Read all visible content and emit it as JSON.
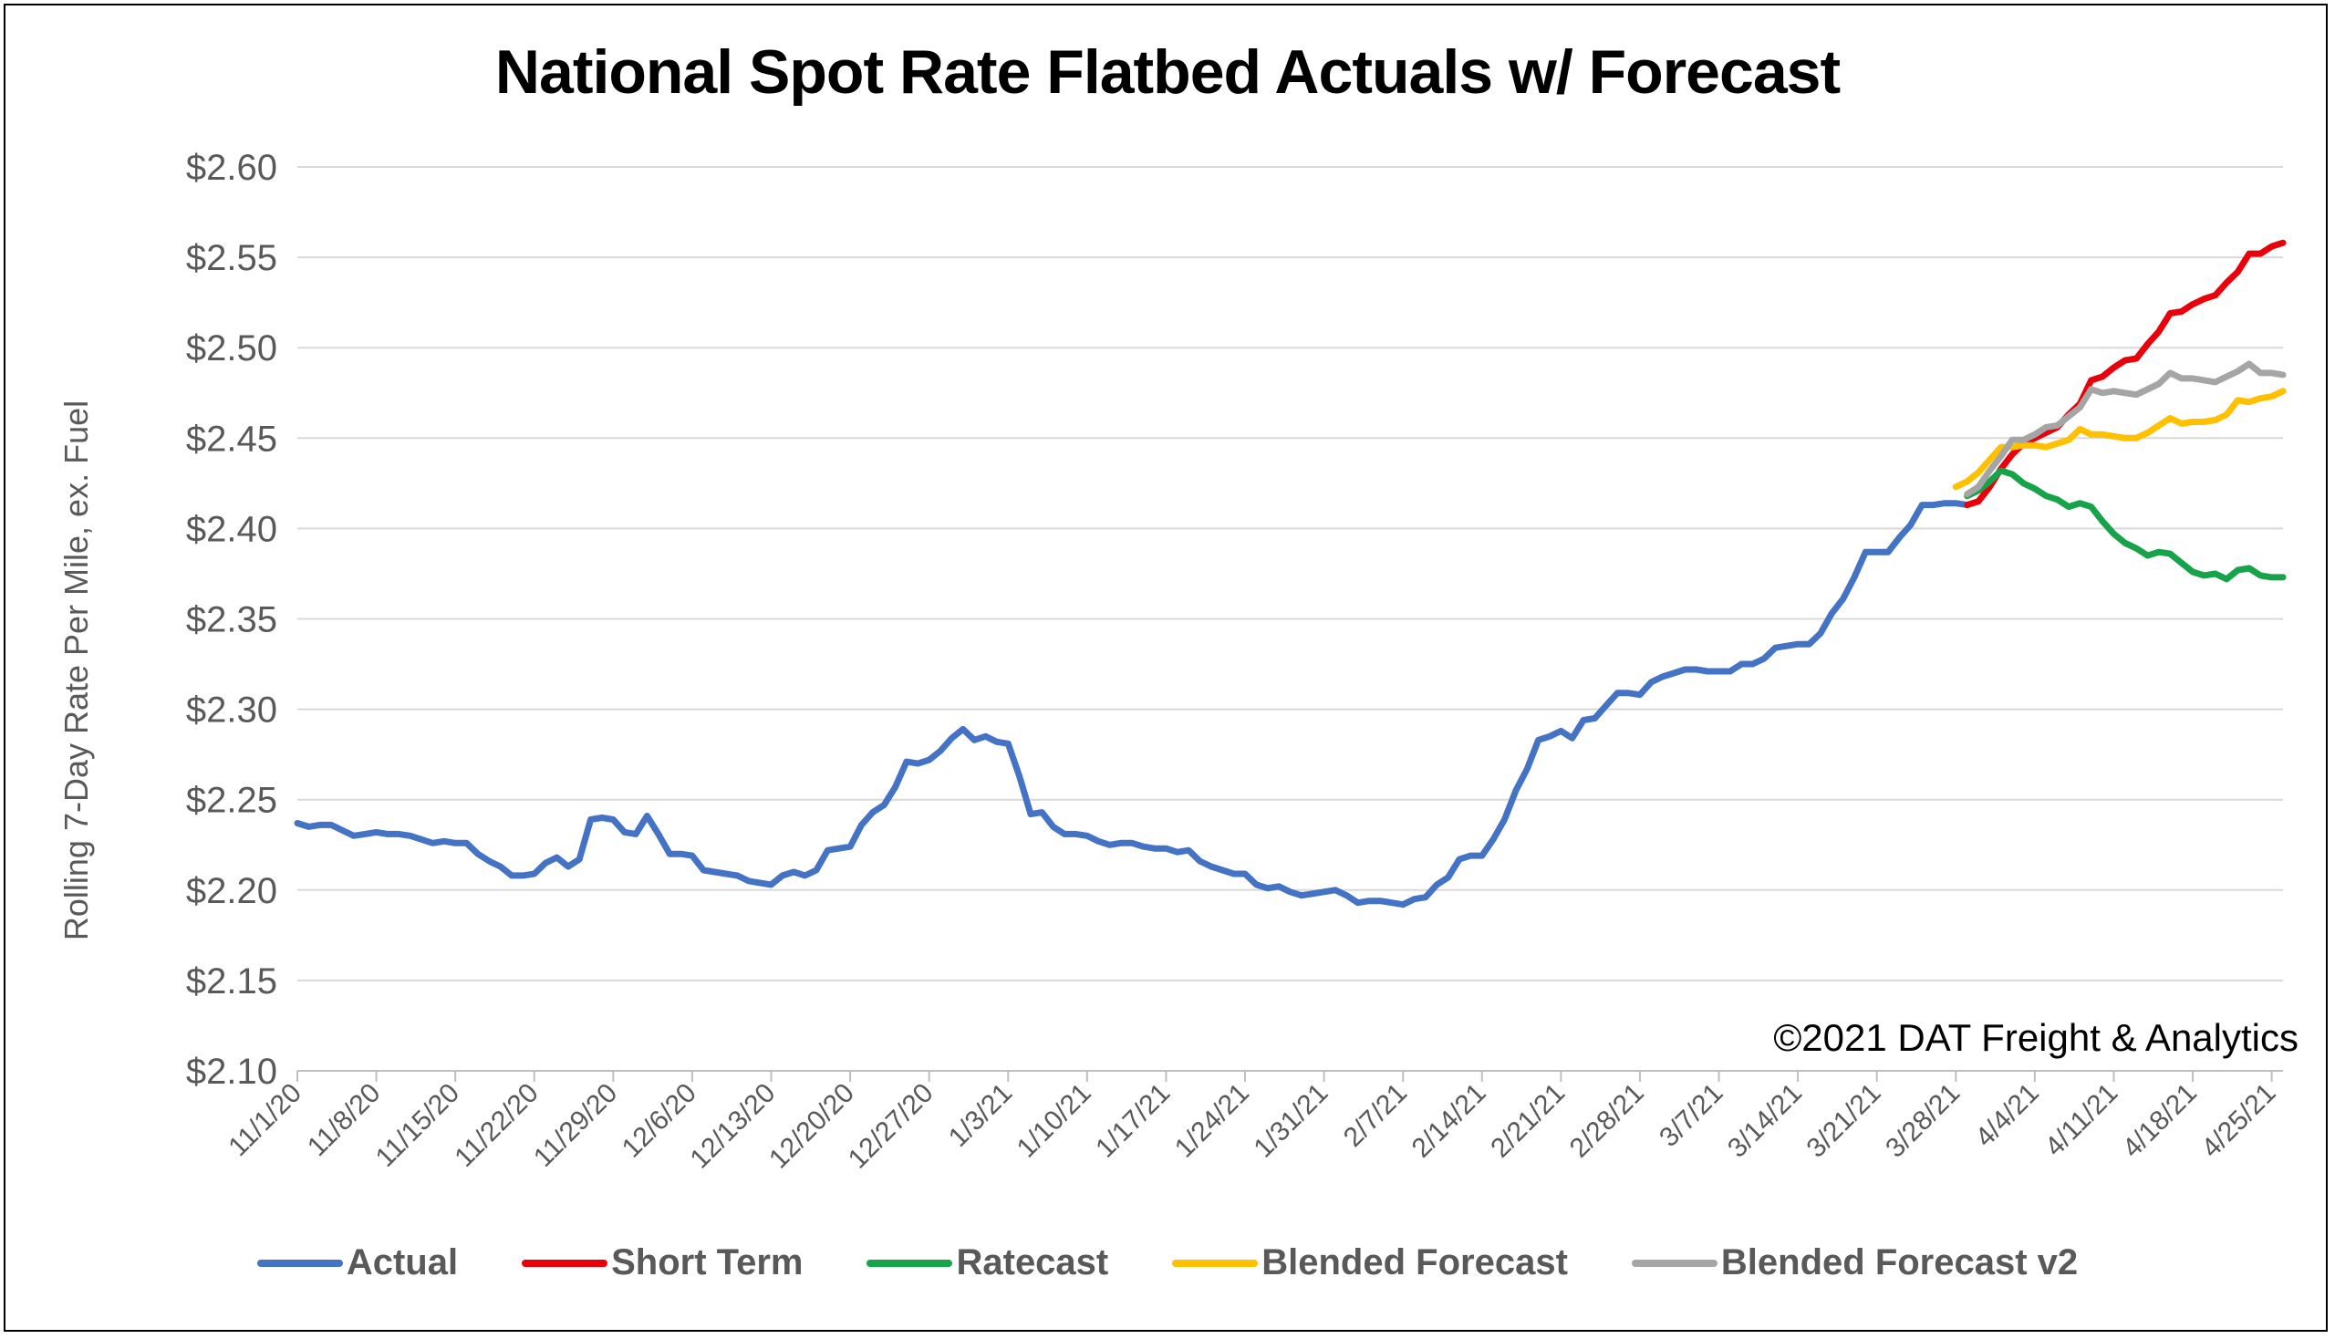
{
  "chart_data": {
    "type": "line",
    "title": "National Spot Rate Flatbed Actuals w/ Forecast",
    "ylabel": "Rolling 7-Day Rate Per Mile, ex. Fuel",
    "xlabel": "",
    "ylim": [
      2.1,
      2.6
    ],
    "y_ticks": [
      "$2.10",
      "$2.15",
      "$2.20",
      "$2.25",
      "$2.30",
      "$2.35",
      "$2.40",
      "$2.45",
      "$2.50",
      "$2.55",
      "$2.60"
    ],
    "x_ticks": [
      "11/1/20",
      "11/8/20",
      "11/15/20",
      "11/22/20",
      "11/29/20",
      "12/6/20",
      "12/13/20",
      "12/20/20",
      "12/27/20",
      "1/3/21",
      "1/10/21",
      "1/17/21",
      "1/24/21",
      "1/31/21",
      "2/7/21",
      "2/14/21",
      "2/21/21",
      "2/28/21",
      "3/7/21",
      "3/14/21",
      "3/21/21",
      "3/28/21",
      "4/4/21",
      "4/11/21",
      "4/18/21",
      "4/25/21"
    ],
    "x_start": "11/1/20",
    "x_end": "4/26/21",
    "grid": true,
    "legend_position": "bottom",
    "annotation": "©2021 DAT Freight & Analytics",
    "series": [
      {
        "name": "Actual",
        "color": "#4472C4",
        "points": [
          [
            "11/1/20",
            2.237
          ],
          [
            "11/2/20",
            2.235
          ],
          [
            "11/3/20",
            2.236
          ],
          [
            "11/4/20",
            2.236
          ],
          [
            "11/5/20",
            2.233
          ],
          [
            "11/6/20",
            2.23
          ],
          [
            "11/7/20",
            2.231
          ],
          [
            "11/8/20",
            2.232
          ],
          [
            "11/9/20",
            2.231
          ],
          [
            "11/10/20",
            2.231
          ],
          [
            "11/11/20",
            2.23
          ],
          [
            "11/12/20",
            2.228
          ],
          [
            "11/13/20",
            2.226
          ],
          [
            "11/14/20",
            2.227
          ],
          [
            "11/15/20",
            2.226
          ],
          [
            "11/16/20",
            2.226
          ],
          [
            "11/17/20",
            2.22
          ],
          [
            "11/18/20",
            2.216
          ],
          [
            "11/19/20",
            2.213
          ],
          [
            "11/20/20",
            2.208
          ],
          [
            "11/21/20",
            2.208
          ],
          [
            "11/22/20",
            2.209
          ],
          [
            "11/23/20",
            2.215
          ],
          [
            "11/24/20",
            2.218
          ],
          [
            "11/25/20",
            2.213
          ],
          [
            "11/26/20",
            2.217
          ],
          [
            "11/27/20",
            2.239
          ],
          [
            "11/28/20",
            2.24
          ],
          [
            "11/29/20",
            2.239
          ],
          [
            "11/30/20",
            2.232
          ],
          [
            "12/1/20",
            2.231
          ],
          [
            "12/2/20",
            2.241
          ],
          [
            "12/3/20",
            2.231
          ],
          [
            "12/4/20",
            2.22
          ],
          [
            "12/5/20",
            2.22
          ],
          [
            "12/6/20",
            2.219
          ],
          [
            "12/7/20",
            2.211
          ],
          [
            "12/8/20",
            2.21
          ],
          [
            "12/9/20",
            2.209
          ],
          [
            "12/10/20",
            2.208
          ],
          [
            "12/11/20",
            2.205
          ],
          [
            "12/12/20",
            2.204
          ],
          [
            "12/13/20",
            2.203
          ],
          [
            "12/14/20",
            2.208
          ],
          [
            "12/15/20",
            2.21
          ],
          [
            "12/16/20",
            2.208
          ],
          [
            "12/17/20",
            2.211
          ],
          [
            "12/18/20",
            2.222
          ],
          [
            "12/19/20",
            2.223
          ],
          [
            "12/20/20",
            2.224
          ],
          [
            "12/21/20",
            2.236
          ],
          [
            "12/22/20",
            2.243
          ],
          [
            "12/23/20",
            2.247
          ],
          [
            "12/24/20",
            2.257
          ],
          [
            "12/25/20",
            2.271
          ],
          [
            "12/26/20",
            2.27
          ],
          [
            "12/27/20",
            2.272
          ],
          [
            "12/28/20",
            2.277
          ],
          [
            "12/29/20",
            2.284
          ],
          [
            "12/30/20",
            2.289
          ],
          [
            "12/31/20",
            2.283
          ],
          [
            "1/1/21",
            2.285
          ],
          [
            "1/2/21",
            2.282
          ],
          [
            "1/3/21",
            2.281
          ],
          [
            "1/4/21",
            2.263
          ],
          [
            "1/5/21",
            2.242
          ],
          [
            "1/6/21",
            2.243
          ],
          [
            "1/7/21",
            2.235
          ],
          [
            "1/8/21",
            2.231
          ],
          [
            "1/9/21",
            2.231
          ],
          [
            "1/10/21",
            2.23
          ],
          [
            "1/11/21",
            2.227
          ],
          [
            "1/12/21",
            2.225
          ],
          [
            "1/13/21",
            2.226
          ],
          [
            "1/14/21",
            2.226
          ],
          [
            "1/15/21",
            2.224
          ],
          [
            "1/16/21",
            2.223
          ],
          [
            "1/17/21",
            2.223
          ],
          [
            "1/18/21",
            2.221
          ],
          [
            "1/19/21",
            2.222
          ],
          [
            "1/20/21",
            2.216
          ],
          [
            "1/21/21",
            2.213
          ],
          [
            "1/22/21",
            2.211
          ],
          [
            "1/23/21",
            2.209
          ],
          [
            "1/24/21",
            2.209
          ],
          [
            "1/25/21",
            2.203
          ],
          [
            "1/26/21",
            2.201
          ],
          [
            "1/27/21",
            2.202
          ],
          [
            "1/28/21",
            2.199
          ],
          [
            "1/29/21",
            2.197
          ],
          [
            "1/30/21",
            2.198
          ],
          [
            "1/31/21",
            2.199
          ],
          [
            "2/1/21",
            2.2
          ],
          [
            "2/2/21",
            2.197
          ],
          [
            "2/3/21",
            2.193
          ],
          [
            "2/4/21",
            2.194
          ],
          [
            "2/5/21",
            2.194
          ],
          [
            "2/6/21",
            2.193
          ],
          [
            "2/7/21",
            2.192
          ],
          [
            "2/8/21",
            2.195
          ],
          [
            "2/9/21",
            2.196
          ],
          [
            "2/10/21",
            2.203
          ],
          [
            "2/11/21",
            2.207
          ],
          [
            "2/12/21",
            2.217
          ],
          [
            "2/13/21",
            2.219
          ],
          [
            "2/14/21",
            2.219
          ],
          [
            "2/15/21",
            2.228
          ],
          [
            "2/16/21",
            2.239
          ],
          [
            "2/17/21",
            2.255
          ],
          [
            "2/18/21",
            2.267
          ],
          [
            "2/19/21",
            2.283
          ],
          [
            "2/20/21",
            2.285
          ],
          [
            "2/21/21",
            2.288
          ],
          [
            "2/22/21",
            2.284
          ],
          [
            "2/23/21",
            2.294
          ],
          [
            "2/24/21",
            2.295
          ],
          [
            "2/25/21",
            2.302
          ],
          [
            "2/26/21",
            2.309
          ],
          [
            "2/27/21",
            2.309
          ],
          [
            "2/28/21",
            2.308
          ],
          [
            "3/1/21",
            2.315
          ],
          [
            "3/2/21",
            2.318
          ],
          [
            "3/3/21",
            2.32
          ],
          [
            "3/4/21",
            2.322
          ],
          [
            "3/5/21",
            2.322
          ],
          [
            "3/6/21",
            2.321
          ],
          [
            "3/7/21",
            2.321
          ],
          [
            "3/8/21",
            2.321
          ],
          [
            "3/9/21",
            2.325
          ],
          [
            "3/10/21",
            2.325
          ],
          [
            "3/11/21",
            2.328
          ],
          [
            "3/12/21",
            2.334
          ],
          [
            "3/13/21",
            2.335
          ],
          [
            "3/14/21",
            2.336
          ],
          [
            "3/15/21",
            2.336
          ],
          [
            "3/16/21",
            2.342
          ],
          [
            "3/17/21",
            2.353
          ],
          [
            "3/18/21",
            2.361
          ],
          [
            "3/19/21",
            2.373
          ],
          [
            "3/20/21",
            2.387
          ],
          [
            "3/21/21",
            2.387
          ],
          [
            "3/22/21",
            2.387
          ],
          [
            "3/23/21",
            2.395
          ],
          [
            "3/24/21",
            2.402
          ],
          [
            "3/25/21",
            2.413
          ],
          [
            "3/26/21",
            2.413
          ],
          [
            "3/27/21",
            2.414
          ],
          [
            "3/28/21",
            2.414
          ],
          [
            "3/29/21",
            2.413
          ]
        ]
      },
      {
        "name": "Short Term",
        "color": "#E8000B",
        "points": [
          [
            "3/29/21",
            2.413
          ],
          [
            "3/30/21",
            2.415
          ],
          [
            "3/31/21",
            2.423
          ],
          [
            "4/1/21",
            2.433
          ],
          [
            "4/2/21",
            2.441
          ],
          [
            "4/3/21",
            2.447
          ],
          [
            "4/4/21",
            2.45
          ],
          [
            "4/5/21",
            2.453
          ],
          [
            "4/6/21",
            2.456
          ],
          [
            "4/7/21",
            2.463
          ],
          [
            "4/8/21",
            2.469
          ],
          [
            "4/9/21",
            2.482
          ],
          [
            "4/10/21",
            2.484
          ],
          [
            "4/11/21",
            2.489
          ],
          [
            "4/12/21",
            2.493
          ],
          [
            "4/13/21",
            2.494
          ],
          [
            "4/14/21",
            2.502
          ],
          [
            "4/15/21",
            2.509
          ],
          [
            "4/16/21",
            2.519
          ],
          [
            "4/17/21",
            2.52
          ],
          [
            "4/18/21",
            2.524
          ],
          [
            "4/19/21",
            2.527
          ],
          [
            "4/20/21",
            2.529
          ],
          [
            "4/21/21",
            2.536
          ],
          [
            "4/22/21",
            2.542
          ],
          [
            "4/23/21",
            2.552
          ],
          [
            "4/24/21",
            2.552
          ],
          [
            "4/25/21",
            2.556
          ],
          [
            "4/26/21",
            2.558
          ]
        ]
      },
      {
        "name": "Ratecast",
        "color": "#17A34A",
        "points": [
          [
            "3/29/21",
            2.418
          ],
          [
            "3/30/21",
            2.421
          ],
          [
            "3/31/21",
            2.426
          ],
          [
            "4/1/21",
            2.432
          ],
          [
            "4/2/21",
            2.43
          ],
          [
            "4/3/21",
            2.425
          ],
          [
            "4/4/21",
            2.422
          ],
          [
            "4/5/21",
            2.418
          ],
          [
            "4/6/21",
            2.416
          ],
          [
            "4/7/21",
            2.412
          ],
          [
            "4/8/21",
            2.414
          ],
          [
            "4/9/21",
            2.412
          ],
          [
            "4/10/21",
            2.404
          ],
          [
            "4/11/21",
            2.397
          ],
          [
            "4/12/21",
            2.392
          ],
          [
            "4/13/21",
            2.389
          ],
          [
            "4/14/21",
            2.385
          ],
          [
            "4/15/21",
            2.387
          ],
          [
            "4/16/21",
            2.386
          ],
          [
            "4/17/21",
            2.381
          ],
          [
            "4/18/21",
            2.376
          ],
          [
            "4/19/21",
            2.374
          ],
          [
            "4/20/21",
            2.375
          ],
          [
            "4/21/21",
            2.372
          ],
          [
            "4/22/21",
            2.377
          ],
          [
            "4/23/21",
            2.378
          ],
          [
            "4/24/21",
            2.374
          ],
          [
            "4/25/21",
            2.373
          ],
          [
            "4/26/21",
            2.373
          ]
        ]
      },
      {
        "name": "Blended Forecast",
        "color": "#FFC000",
        "points": [
          [
            "3/28/21",
            2.423
          ],
          [
            "3/29/21",
            2.426
          ],
          [
            "3/30/21",
            2.431
          ],
          [
            "3/31/21",
            2.438
          ],
          [
            "4/1/21",
            2.445
          ],
          [
            "4/2/21",
            2.445
          ],
          [
            "4/3/21",
            2.446
          ],
          [
            "4/4/21",
            2.446
          ],
          [
            "4/5/21",
            2.445
          ],
          [
            "4/6/21",
            2.447
          ],
          [
            "4/7/21",
            2.449
          ],
          [
            "4/8/21",
            2.455
          ],
          [
            "4/9/21",
            2.452
          ],
          [
            "4/10/21",
            2.452
          ],
          [
            "4/11/21",
            2.451
          ],
          [
            "4/12/21",
            2.45
          ],
          [
            "4/13/21",
            2.45
          ],
          [
            "4/14/21",
            2.453
          ],
          [
            "4/15/21",
            2.457
          ],
          [
            "4/16/21",
            2.461
          ],
          [
            "4/17/21",
            2.458
          ],
          [
            "4/18/21",
            2.459
          ],
          [
            "4/19/21",
            2.459
          ],
          [
            "4/20/21",
            2.46
          ],
          [
            "4/21/21",
            2.463
          ],
          [
            "4/22/21",
            2.471
          ],
          [
            "4/23/21",
            2.47
          ],
          [
            "4/24/21",
            2.472
          ],
          [
            "4/25/21",
            2.473
          ],
          [
            "4/26/21",
            2.476
          ]
        ]
      },
      {
        "name": "Blended Forecast v2",
        "color": "#A5A5A5",
        "points": [
          [
            "3/29/21",
            2.419
          ],
          [
            "3/30/21",
            2.423
          ],
          [
            "3/31/21",
            2.432
          ],
          [
            "4/1/21",
            2.44
          ],
          [
            "4/2/21",
            2.449
          ],
          [
            "4/3/21",
            2.449
          ],
          [
            "4/4/21",
            2.452
          ],
          [
            "4/5/21",
            2.456
          ],
          [
            "4/6/21",
            2.457
          ],
          [
            "4/7/21",
            2.462
          ],
          [
            "4/8/21",
            2.467
          ],
          [
            "4/9/21",
            2.477
          ],
          [
            "4/10/21",
            2.475
          ],
          [
            "4/11/21",
            2.476
          ],
          [
            "4/12/21",
            2.475
          ],
          [
            "4/13/21",
            2.474
          ],
          [
            "4/14/21",
            2.477
          ],
          [
            "4/15/21",
            2.48
          ],
          [
            "4/16/21",
            2.486
          ],
          [
            "4/17/21",
            2.483
          ],
          [
            "4/18/21",
            2.483
          ],
          [
            "4/19/21",
            2.482
          ],
          [
            "4/20/21",
            2.481
          ],
          [
            "4/21/21",
            2.484
          ],
          [
            "4/22/21",
            2.487
          ],
          [
            "4/23/21",
            2.491
          ],
          [
            "4/24/21",
            2.486
          ],
          [
            "4/25/21",
            2.486
          ],
          [
            "4/26/21",
            2.485
          ]
        ]
      }
    ]
  }
}
